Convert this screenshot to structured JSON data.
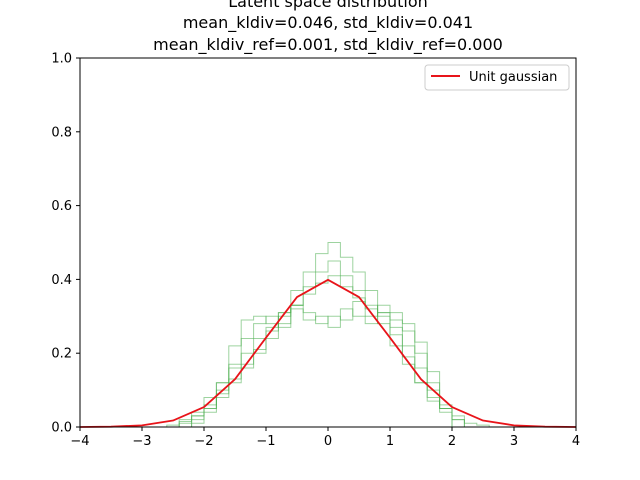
{
  "chart_data": {
    "type": "line",
    "title_lines": [
      "Latent space distribution",
      "mean_kldiv=0.046, std_kldiv=0.041",
      "mean_kldiv_ref=0.001, std_kldiv_ref=0.000"
    ],
    "xlabel": "",
    "ylabel": "",
    "xlim": [
      -4,
      4
    ],
    "ylim": [
      0,
      1
    ],
    "x_ticks": [
      "−4",
      "−3",
      "−2",
      "−1",
      "0",
      "1",
      "2",
      "3",
      "4"
    ],
    "y_ticks": [
      "0.0",
      "0.2",
      "0.4",
      "0.6",
      "0.8",
      "1.0"
    ],
    "grid": false,
    "legend": {
      "placement": "top-right",
      "entries": [
        "Unit gaussian"
      ]
    },
    "colors": {
      "gaussian": "#e8141a",
      "histograms": "#4caf50"
    },
    "series": [
      {
        "name": "Unit gaussian",
        "kind": "line",
        "x": [
          -4,
          -3.5,
          -3,
          -2.5,
          -2,
          -1.5,
          -1,
          -0.5,
          0,
          0.5,
          1,
          1.5,
          2,
          2.5,
          3,
          3.5,
          4
        ],
        "values": [
          0.0001,
          0.0009,
          0.0044,
          0.0175,
          0.054,
          0.1295,
          0.242,
          0.3521,
          0.3989,
          0.3521,
          0.242,
          0.1295,
          0.054,
          0.0175,
          0.0044,
          0.0009,
          0.0001
        ]
      }
    ],
    "histograms": [
      {
        "bins": [
          -2.2,
          -2.0,
          -1.8,
          -1.6,
          -1.4,
          -1.2,
          -1.0,
          -0.8,
          -0.6,
          -0.4,
          -0.2,
          0.0,
          0.2,
          0.4,
          0.6,
          0.8,
          1.0,
          1.2,
          1.4,
          1.6,
          1.8,
          2.0
        ],
        "values": [
          0.01,
          0.04,
          0.12,
          0.22,
          0.29,
          0.3,
          0.28,
          0.31,
          0.33,
          0.29,
          0.3,
          0.27,
          0.32,
          0.3,
          0.28,
          0.33,
          0.31,
          0.26,
          0.2,
          0.12,
          0.05
        ]
      },
      {
        "bins": [
          -2.2,
          -2.0,
          -1.8,
          -1.6,
          -1.4,
          -1.2,
          -1.0,
          -0.8,
          -0.6,
          -0.4,
          -0.2,
          0.0,
          0.2,
          0.4,
          0.6,
          0.8,
          1.0,
          1.2,
          1.4,
          1.6,
          1.8,
          2.0
        ],
        "values": [
          0.02,
          0.05,
          0.1,
          0.17,
          0.24,
          0.28,
          0.3,
          0.27,
          0.32,
          0.31,
          0.28,
          0.3,
          0.29,
          0.34,
          0.3,
          0.31,
          0.29,
          0.28,
          0.23,
          0.15,
          0.06
        ]
      },
      {
        "bins": [
          -2.4,
          -2.2,
          -2.0,
          -1.8,
          -1.6,
          -1.4,
          -1.2,
          -1.0,
          -0.8,
          -0.6,
          -0.4,
          -0.2,
          0.0,
          0.2,
          0.4,
          0.6,
          0.8,
          1.0,
          1.2,
          1.4,
          1.6,
          1.8,
          2.0,
          2.2
        ],
        "values": [
          0.01,
          0.03,
          0.06,
          0.09,
          0.13,
          0.17,
          0.21,
          0.26,
          0.31,
          0.37,
          0.42,
          0.47,
          0.5,
          0.46,
          0.42,
          0.37,
          0.31,
          0.25,
          0.19,
          0.12,
          0.07,
          0.04,
          0.02
        ]
      },
      {
        "bins": [
          -2.6,
          -2.4,
          -2.2,
          -2.0,
          -1.8,
          -1.6,
          -1.4,
          -1.2,
          -1.0,
          -0.8,
          -0.6,
          -0.4,
          -0.2,
          0.0,
          0.2,
          0.4,
          0.6,
          0.8,
          1.0,
          1.2,
          1.4,
          1.6,
          1.8,
          2.0,
          2.2,
          2.4,
          2.6
        ],
        "values": [
          0.005,
          0.015,
          0.03,
          0.05,
          0.08,
          0.12,
          0.16,
          0.2,
          0.24,
          0.28,
          0.33,
          0.38,
          0.42,
          0.45,
          0.41,
          0.37,
          0.33,
          0.28,
          0.22,
          0.17,
          0.12,
          0.08,
          0.05,
          0.03,
          0.01,
          0.005
        ]
      },
      {
        "bins": [
          -2.4,
          -2.2,
          -2.0,
          -1.8,
          -1.6,
          -1.4,
          -1.2,
          -1.0,
          -0.8,
          -0.6,
          -0.4,
          -0.2,
          0.0,
          0.2,
          0.4,
          0.6,
          0.8,
          1.0,
          1.2,
          1.4,
          1.6,
          1.8,
          2.0,
          2.2
        ],
        "values": [
          0.02,
          0.04,
          0.08,
          0.12,
          0.16,
          0.2,
          0.24,
          0.27,
          0.3,
          0.33,
          0.36,
          0.39,
          0.41,
          0.38,
          0.35,
          0.32,
          0.3,
          0.27,
          0.22,
          0.16,
          0.1,
          0.05,
          0.02
        ]
      }
    ]
  }
}
